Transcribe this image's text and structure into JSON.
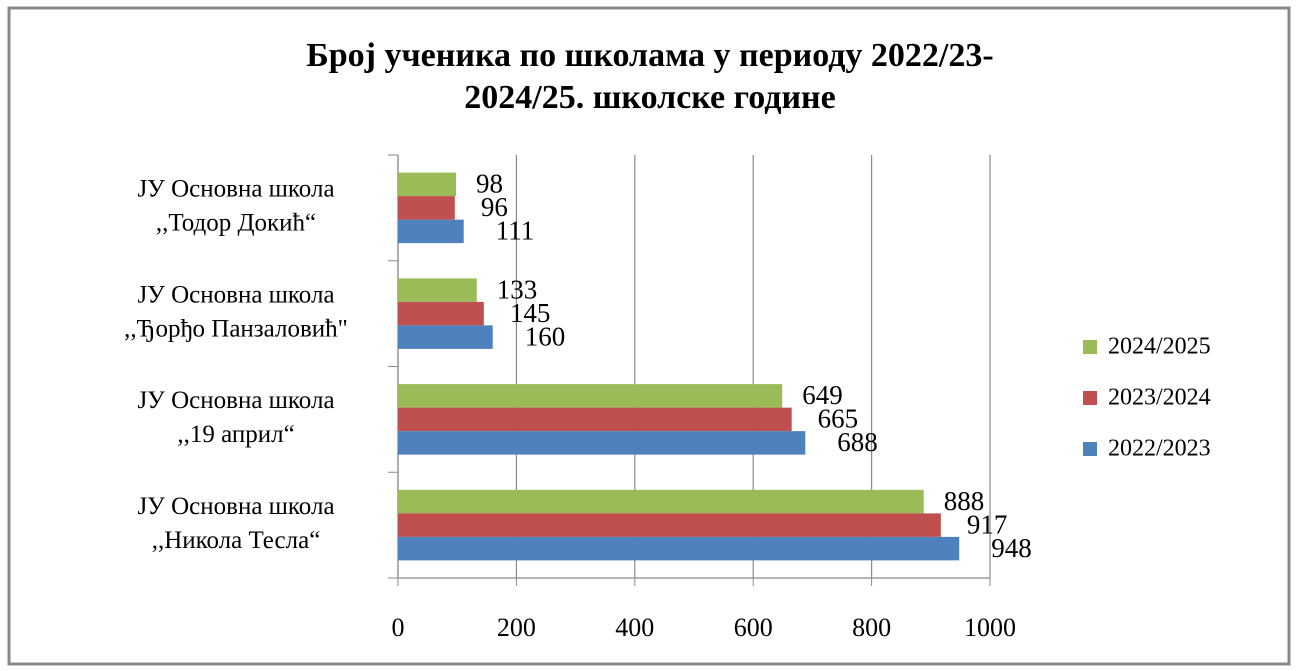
{
  "chart_data": {
    "type": "barh",
    "title": [
      "Број ученика по школама у периоду 2022/23-",
      "2024/25. школске године"
    ],
    "categories": [
      [
        "ЈУ Основна школа",
        ",,Тодор Докић“"
      ],
      [
        "ЈУ Основна школа",
        ",,Ђорђо Панзаловић\""
      ],
      [
        "ЈУ  Основна  школа",
        ",,19 април“"
      ],
      [
        "ЈУ Основна школа",
        ",,Никола Тесла“"
      ]
    ],
    "series": [
      {
        "name": "2024/2025",
        "color": "#9bbb59",
        "values": [
          98,
          133,
          649,
          888
        ]
      },
      {
        "name": "2023/2024",
        "color": "#c0504d",
        "values": [
          96,
          145,
          665,
          917
        ]
      },
      {
        "name": "2022/2023",
        "color": "#4f81bd",
        "values": [
          111,
          160,
          688,
          948
        ]
      }
    ],
    "xlim": [
      0,
      1000
    ],
    "xticks": [
      0,
      200,
      400,
      600,
      800,
      1000
    ],
    "grid": true,
    "legend": "right"
  }
}
